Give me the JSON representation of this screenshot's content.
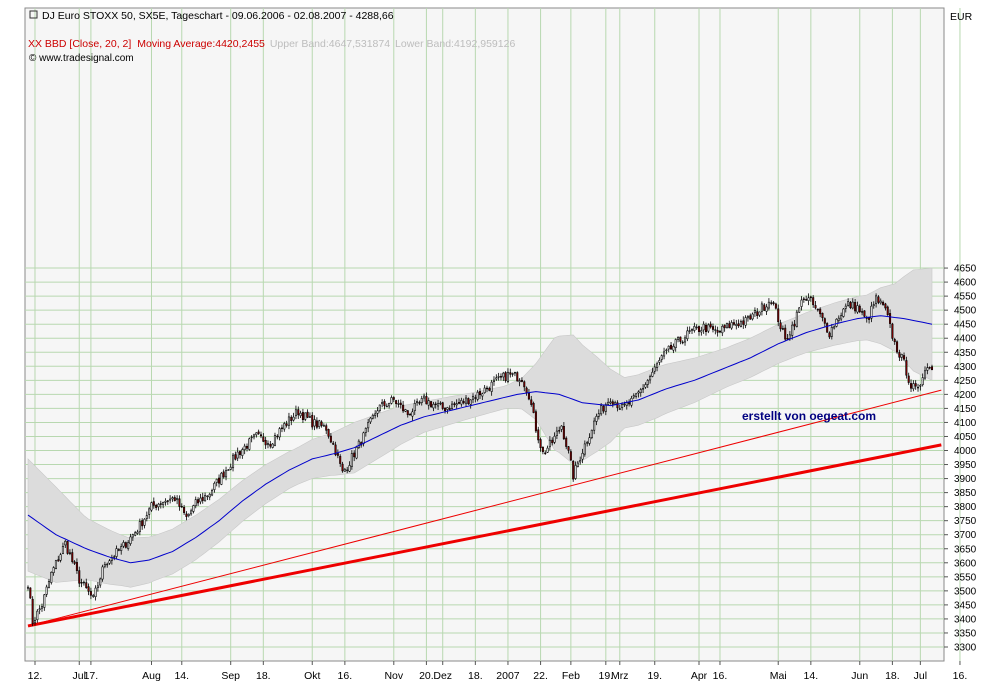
{
  "header": {
    "title_line": "DJ Euro STOXX 50, SX5E, Tageschart - 09.06.2006 - 02.08.2007 - 4288,66",
    "indicator_name": "XX BBD [Close, 20, 2]",
    "indicator_ma": "Moving Average:4420,2455",
    "indicator_upper": "Upper Band:4647,531874",
    "indicator_lower": "Lower Band:4192,959126",
    "source": "www.tradesignal.com",
    "currency": "EUR"
  },
  "annotation": "erstellt von oegeat.com",
  "colors": {
    "up_candle": "#ffffff",
    "down_candle": "#8b0000",
    "moving_average": "#0000cc",
    "bands_fill": "#dcdcdc",
    "trendlines": "#ee0000",
    "indicator_text": "#cc0000",
    "annotation_text": "#000080",
    "grid": "#b8d8b0"
  },
  "chart_data": {
    "type": "candlestick",
    "title": "DJ Euro STOXX 50, SX5E, Tageschart - 09.06.2006 - 02.08.2007 - 4288,66",
    "ylabel": "EUR",
    "ylim": [
      3280,
      4680
    ],
    "grid": true,
    "y_ticks": [
      3300,
      3350,
      3400,
      3450,
      3500,
      3550,
      3600,
      3650,
      3700,
      3750,
      3800,
      3850,
      3900,
      3950,
      4000,
      4050,
      4100,
      4150,
      4200,
      4250,
      4300,
      4350,
      4400,
      4450,
      4500,
      4550,
      4600,
      4650
    ],
    "x_ticks": [
      "12.",
      "Jul",
      "17.",
      "Aug",
      "14.",
      "Sep",
      "18.",
      "Okt",
      "16.",
      "Nov",
      "20.",
      "Dez",
      "18.",
      "2007",
      "22.",
      "Feb",
      "19.",
      "Mrz",
      "19.",
      "Apr",
      "16.",
      "Mai",
      "14.",
      "Jun",
      "18.",
      "Jul",
      "16."
    ],
    "x_tick_days": [
      3,
      22,
      27,
      53,
      66,
      87,
      101,
      122,
      136,
      157,
      171,
      178,
      192,
      206,
      220,
      233,
      248,
      254,
      269,
      288,
      297,
      322,
      336,
      357,
      371,
      383,
      400
    ],
    "anchors": [
      [
        0,
        3530
      ],
      [
        2,
        3390
      ],
      [
        6,
        3450
      ],
      [
        10,
        3560
      ],
      [
        16,
        3670
      ],
      [
        22,
        3540
      ],
      [
        28,
        3470
      ],
      [
        33,
        3600
      ],
      [
        40,
        3650
      ],
      [
        47,
        3720
      ],
      [
        53,
        3800
      ],
      [
        58,
        3820
      ],
      [
        63,
        3830
      ],
      [
        68,
        3760
      ],
      [
        72,
        3810
      ],
      [
        78,
        3850
      ],
      [
        84,
        3920
      ],
      [
        90,
        3990
      ],
      [
        98,
        4050
      ],
      [
        104,
        4030
      ],
      [
        110,
        4090
      ],
      [
        116,
        4140
      ],
      [
        122,
        4100
      ],
      [
        128,
        4080
      ],
      [
        132,
        4000
      ],
      [
        135,
        3920
      ],
      [
        138,
        3960
      ],
      [
        144,
        4050
      ],
      [
        150,
        4150
      ],
      [
        157,
        4180
      ],
      [
        163,
        4130
      ],
      [
        170,
        4180
      ],
      [
        178,
        4150
      ],
      [
        186,
        4170
      ],
      [
        193,
        4200
      ],
      [
        200,
        4240
      ],
      [
        206,
        4270
      ],
      [
        212,
        4260
      ],
      [
        215,
        4200
      ],
      [
        218,
        4080
      ],
      [
        221,
        3990
      ],
      [
        225,
        4030
      ],
      [
        229,
        4090
      ],
      [
        232,
        3990
      ],
      [
        234,
        3910
      ],
      [
        238,
        4000
      ],
      [
        244,
        4120
      ],
      [
        250,
        4190
      ],
      [
        255,
        4150
      ],
      [
        260,
        4180
      ],
      [
        266,
        4250
      ],
      [
        272,
        4330
      ],
      [
        278,
        4380
      ],
      [
        284,
        4420
      ],
      [
        290,
        4440
      ],
      [
        296,
        4420
      ],
      [
        302,
        4450
      ],
      [
        308,
        4460
      ],
      [
        314,
        4500
      ],
      [
        319,
        4540
      ],
      [
        322,
        4470
      ],
      [
        325,
        4390
      ],
      [
        329,
        4460
      ],
      [
        333,
        4550
      ],
      [
        336,
        4530
      ],
      [
        340,
        4480
      ],
      [
        344,
        4420
      ],
      [
        348,
        4480
      ],
      [
        352,
        4520
      ],
      [
        356,
        4510
      ],
      [
        360,
        4460
      ],
      [
        364,
        4540
      ],
      [
        368,
        4500
      ],
      [
        372,
        4380
      ],
      [
        376,
        4310
      ],
      [
        379,
        4230
      ],
      [
        382,
        4210
      ],
      [
        385,
        4300
      ],
      [
        388,
        4288
      ]
    ],
    "moving_average_anchors": [
      [
        0,
        3770
      ],
      [
        12,
        3700
      ],
      [
        25,
        3650
      ],
      [
        35,
        3620
      ],
      [
        44,
        3600
      ],
      [
        52,
        3610
      ],
      [
        62,
        3640
      ],
      [
        72,
        3690
      ],
      [
        82,
        3750
      ],
      [
        92,
        3820
      ],
      [
        102,
        3880
      ],
      [
        112,
        3930
      ],
      [
        122,
        3970
      ],
      [
        132,
        3990
      ],
      [
        140,
        4010
      ],
      [
        150,
        4050
      ],
      [
        160,
        4090
      ],
      [
        170,
        4120
      ],
      [
        180,
        4140
      ],
      [
        190,
        4160
      ],
      [
        200,
        4180
      ],
      [
        210,
        4200
      ],
      [
        218,
        4210
      ],
      [
        228,
        4200
      ],
      [
        238,
        4170
      ],
      [
        250,
        4160
      ],
      [
        262,
        4180
      ],
      [
        274,
        4220
      ],
      [
        286,
        4250
      ],
      [
        298,
        4290
      ],
      [
        310,
        4330
      ],
      [
        322,
        4380
      ],
      [
        334,
        4420
      ],
      [
        346,
        4450
      ],
      [
        356,
        4470
      ],
      [
        366,
        4480
      ],
      [
        376,
        4470
      ],
      [
        388,
        4450
      ]
    ],
    "bands_half_width_anchors": [
      [
        0,
        200
      ],
      [
        12,
        170
      ],
      [
        25,
        110
      ],
      [
        40,
        90
      ],
      [
        55,
        80
      ],
      [
        70,
        80
      ],
      [
        85,
        75
      ],
      [
        100,
        70
      ],
      [
        115,
        65
      ],
      [
        130,
        75
      ],
      [
        140,
        90
      ],
      [
        155,
        75
      ],
      [
        170,
        55
      ],
      [
        190,
        45
      ],
      [
        205,
        40
      ],
      [
        212,
        55
      ],
      [
        218,
        100
      ],
      [
        226,
        200
      ],
      [
        234,
        230
      ],
      [
        244,
        170
      ],
      [
        256,
        90
      ],
      [
        270,
        90
      ],
      [
        285,
        80
      ],
      [
        300,
        70
      ],
      [
        315,
        70
      ],
      [
        330,
        70
      ],
      [
        345,
        75
      ],
      [
        360,
        80
      ],
      [
        372,
        120
      ],
      [
        380,
        180
      ],
      [
        388,
        200
      ]
    ],
    "trendlines": [
      {
        "name": "",
        "points": [
          [
            0,
            3375
          ],
          [
            392,
            4215
          ]
        ],
        "width": "thin"
      },
      {
        "name": "",
        "points": [
          [
            0,
            3375
          ],
          [
            392,
            4020
          ]
        ],
        "width": "thick"
      }
    ]
  }
}
